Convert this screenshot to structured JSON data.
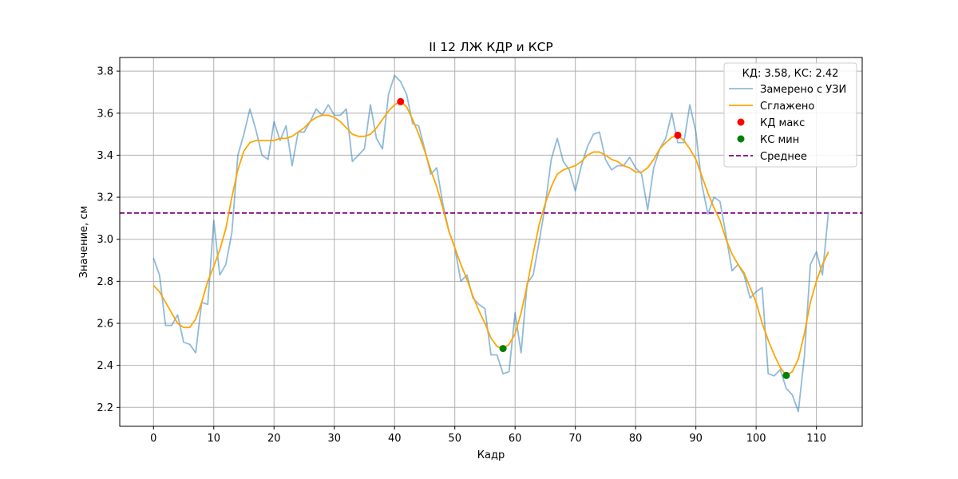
{
  "chart_data": {
    "type": "line",
    "title": "II 12 ЛЖ КДР и КСР",
    "xlabel": "Кадр",
    "ylabel": "Значение, см",
    "xlim": [
      -5.6,
      117.6
    ],
    "ylim": [
      2.11,
      3.865
    ],
    "xticks": [
      0,
      10,
      20,
      30,
      40,
      50,
      60,
      70,
      80,
      90,
      100,
      110
    ],
    "yticks": [
      2.2,
      2.4,
      2.6,
      2.8,
      3.0,
      3.2,
      3.4,
      3.6,
      3.8
    ],
    "grid": true,
    "legend": {
      "title": "КД: 3.58, КС: 2.42",
      "position": "top-right",
      "entries": [
        "Замерено с УЗИ",
        "Сглажено",
        "КД макс",
        "КС мин",
        "Среднее"
      ]
    },
    "colors": {
      "measured": "#1f77b4",
      "smoothed": "#ffa500",
      "max_marker": "#ff0000",
      "min_marker": "#008000",
      "mean_line": "#800080",
      "grid": "#b0b0b0"
    },
    "series": [
      {
        "name": "Замерено с УЗИ",
        "x": [
          0,
          1,
          2,
          3,
          4,
          5,
          6,
          7,
          8,
          9,
          10,
          11,
          12,
          13,
          14,
          15,
          16,
          17,
          18,
          19,
          20,
          21,
          22,
          23,
          24,
          25,
          26,
          27,
          28,
          29,
          30,
          31,
          32,
          33,
          34,
          35,
          36,
          37,
          38,
          39,
          40,
          41,
          42,
          43,
          44,
          45,
          46,
          47,
          48,
          49,
          50,
          51,
          52,
          53,
          54,
          55,
          56,
          57,
          58,
          59,
          60,
          61,
          62,
          63,
          64,
          65,
          66,
          67,
          68,
          69,
          70,
          71,
          72,
          73,
          74,
          75,
          76,
          77,
          78,
          79,
          80,
          81,
          82,
          83,
          84,
          85,
          86,
          87,
          88,
          89,
          90,
          91,
          92,
          93,
          94,
          95,
          96,
          97,
          98,
          99,
          100,
          101,
          102,
          103,
          104,
          105,
          106,
          107,
          108,
          109,
          110,
          111,
          112
        ],
        "y": [
          2.91,
          2.83,
          2.59,
          2.59,
          2.64,
          2.51,
          2.5,
          2.46,
          2.7,
          2.69,
          3.09,
          2.83,
          2.88,
          3.03,
          3.4,
          3.5,
          3.62,
          3.52,
          3.4,
          3.38,
          3.56,
          3.47,
          3.54,
          3.35,
          3.51,
          3.51,
          3.56,
          3.62,
          3.59,
          3.64,
          3.59,
          3.59,
          3.62,
          3.37,
          3.4,
          3.43,
          3.64,
          3.48,
          3.43,
          3.69,
          3.78,
          3.75,
          3.69,
          3.55,
          3.54,
          3.43,
          3.31,
          3.34,
          3.17,
          3.04,
          2.96,
          2.8,
          2.83,
          2.72,
          2.69,
          2.67,
          2.45,
          2.45,
          2.36,
          2.37,
          2.65,
          2.46,
          2.79,
          2.83,
          2.99,
          3.16,
          3.38,
          3.48,
          3.37,
          3.33,
          3.23,
          3.35,
          3.44,
          3.5,
          3.51,
          3.38,
          3.33,
          3.35,
          3.35,
          3.39,
          3.34,
          3.31,
          3.14,
          3.34,
          3.43,
          3.48,
          3.6,
          3.46,
          3.46,
          3.64,
          3.51,
          3.26,
          3.12,
          3.2,
          3.18,
          3.02,
          2.85,
          2.88,
          2.83,
          2.72,
          2.75,
          2.77,
          2.36,
          2.35,
          2.38,
          2.29,
          2.26,
          2.18,
          2.44,
          2.88,
          2.94,
          2.83,
          3.13
        ]
      },
      {
        "name": "Сглажено",
        "x": [
          0,
          1,
          2,
          3,
          4,
          5,
          6,
          7,
          8,
          9,
          10,
          11,
          12,
          13,
          14,
          15,
          16,
          17,
          18,
          19,
          20,
          21,
          22,
          23,
          24,
          25,
          26,
          27,
          28,
          29,
          30,
          31,
          32,
          33,
          34,
          35,
          36,
          37,
          38,
          39,
          40,
          41,
          42,
          43,
          44,
          45,
          46,
          47,
          48,
          49,
          50,
          51,
          52,
          53,
          54,
          55,
          56,
          57,
          58,
          59,
          60,
          61,
          62,
          63,
          64,
          65,
          66,
          67,
          68,
          69,
          70,
          71,
          72,
          73,
          74,
          75,
          76,
          77,
          78,
          79,
          80,
          81,
          82,
          83,
          84,
          85,
          86,
          87,
          88,
          89,
          90,
          91,
          92,
          93,
          94,
          95,
          96,
          97,
          98,
          99,
          100,
          101,
          102,
          103,
          104,
          105,
          106,
          107,
          108,
          109,
          110,
          111,
          112
        ],
        "y": [
          2.78,
          2.75,
          2.7,
          2.65,
          2.6,
          2.58,
          2.58,
          2.62,
          2.7,
          2.8,
          2.87,
          2.95,
          3.05,
          3.2,
          3.33,
          3.42,
          3.46,
          3.47,
          3.47,
          3.47,
          3.47,
          3.48,
          3.48,
          3.49,
          3.51,
          3.53,
          3.56,
          3.58,
          3.59,
          3.59,
          3.58,
          3.56,
          3.53,
          3.5,
          3.49,
          3.49,
          3.5,
          3.53,
          3.57,
          3.61,
          3.64,
          3.655,
          3.63,
          3.57,
          3.5,
          3.42,
          3.33,
          3.25,
          3.15,
          3.04,
          2.96,
          2.88,
          2.81,
          2.73,
          2.66,
          2.6,
          2.53,
          2.49,
          2.48,
          2.5,
          2.55,
          2.65,
          2.78,
          2.93,
          3.07,
          3.17,
          3.25,
          3.31,
          3.33,
          3.34,
          3.35,
          3.37,
          3.4,
          3.415,
          3.415,
          3.4,
          3.38,
          3.37,
          3.35,
          3.34,
          3.32,
          3.32,
          3.34,
          3.38,
          3.43,
          3.46,
          3.485,
          3.495,
          3.47,
          3.43,
          3.38,
          3.3,
          3.22,
          3.15,
          3.09,
          3.0,
          2.93,
          2.88,
          2.84,
          2.77,
          2.7,
          2.6,
          2.52,
          2.45,
          2.39,
          2.352,
          2.37,
          2.43,
          2.55,
          2.7,
          2.8,
          2.88,
          2.94
        ]
      }
    ],
    "markers": {
      "kd_max": {
        "label": "КД макс",
        "points": [
          [
            41,
            3.655
          ],
          [
            87,
            3.495
          ]
        ]
      },
      "ks_min": {
        "label": "КС мин",
        "points": [
          [
            58,
            2.48
          ],
          [
            105,
            2.352
          ]
        ]
      }
    },
    "mean_line": {
      "label": "Среднее",
      "y": 3.125
    }
  }
}
